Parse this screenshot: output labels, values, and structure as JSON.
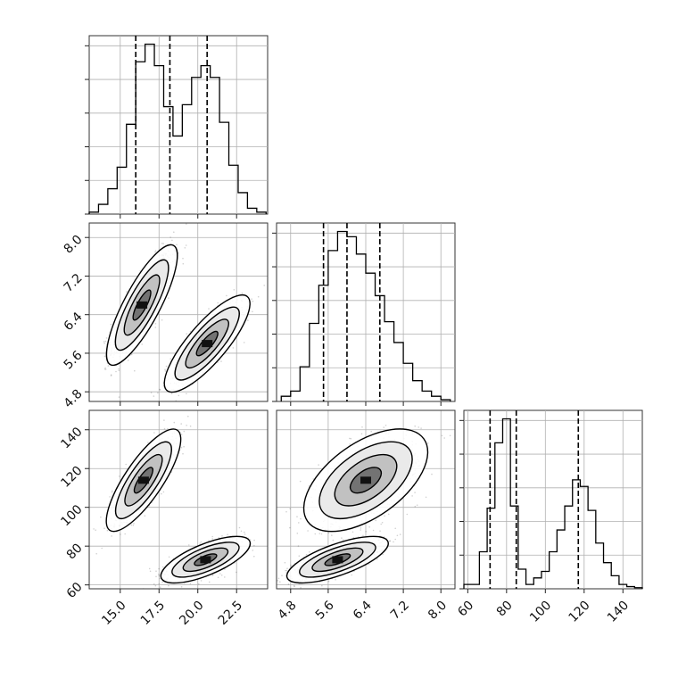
{
  "chart_data": {
    "type": "corner",
    "colors": {
      "hist": "#000000",
      "scatter": "#000000",
      "grid": "#b0b0b0"
    },
    "panels": [
      {
        "id": "hist-p1",
        "type": "histogram",
        "row": 0,
        "col": 0,
        "xlim": [
          13.0,
          24.5
        ],
        "xticks": [
          15.0,
          17.5,
          20.0,
          22.5
        ],
        "bin_edges": [
          13.0,
          13.6,
          14.2,
          14.8,
          15.4,
          16.0,
          16.6,
          17.2,
          17.8,
          18.4,
          19.0,
          19.6,
          20.2,
          20.8,
          21.4,
          22.0,
          22.6,
          23.2,
          23.8,
          24.4
        ],
        "counts": [
          0.01,
          0.05,
          0.13,
          0.24,
          0.46,
          0.78,
          0.87,
          0.76,
          0.55,
          0.4,
          0.56,
          0.7,
          0.76,
          0.7,
          0.47,
          0.25,
          0.11,
          0.03,
          0.01
        ],
        "quantiles": [
          16.0,
          18.2,
          20.6
        ]
      },
      {
        "id": "hist-p2",
        "type": "histogram",
        "row": 1,
        "col": 1,
        "xlim": [
          4.5,
          8.3
        ],
        "xticks": [
          4.8,
          5.6,
          6.4,
          7.2,
          8.0
        ],
        "bin_edges": [
          4.6,
          4.8,
          5.0,
          5.2,
          5.4,
          5.6,
          5.8,
          6.0,
          6.2,
          6.4,
          6.6,
          6.8,
          7.0,
          7.2,
          7.4,
          7.6,
          7.8,
          8.0,
          8.2
        ],
        "counts": [
          0.03,
          0.06,
          0.2,
          0.45,
          0.67,
          0.87,
          0.98,
          0.95,
          0.85,
          0.74,
          0.61,
          0.46,
          0.34,
          0.22,
          0.12,
          0.06,
          0.03,
          0.01
        ],
        "quantiles": [
          5.5,
          6.0,
          6.7
        ]
      },
      {
        "id": "hist-p3",
        "type": "histogram",
        "row": 2,
        "col": 2,
        "xlim": [
          58,
          150
        ],
        "xticks": [
          60,
          80,
          100,
          120,
          140
        ],
        "bin_edges": [
          58,
          62,
          66,
          70,
          74,
          78,
          82,
          86,
          90,
          94,
          98,
          102,
          106,
          110,
          114,
          118,
          122,
          126,
          130,
          134,
          138,
          142,
          146,
          150
        ],
        "counts": [
          0.02,
          0.02,
          0.17,
          0.37,
          0.67,
          0.78,
          0.38,
          0.09,
          0.02,
          0.05,
          0.08,
          0.17,
          0.27,
          0.38,
          0.5,
          0.47,
          0.36,
          0.21,
          0.12,
          0.06,
          0.02,
          0.01,
          0.005
        ],
        "quantiles": [
          71.5,
          85,
          117
        ]
      },
      {
        "id": "scatter-p2-p1",
        "type": "density",
        "row": 1,
        "col": 0,
        "xlim": [
          13.0,
          24.5
        ],
        "ylim": [
          4.6,
          8.3
        ],
        "xticks": [
          15.0,
          17.5,
          20.0,
          22.5
        ],
        "yticks": [
          4.8,
          5.6,
          6.4,
          7.2,
          8.0
        ],
        "clusters": [
          {
            "cx": 16.4,
            "cy": 6.6,
            "sx": 0.95,
            "sy": 0.52,
            "rho": 0.82
          },
          {
            "cx": 20.6,
            "cy": 5.8,
            "sx": 1.15,
            "sy": 0.42,
            "rho": 0.82
          }
        ]
      },
      {
        "id": "scatter-p3-p1",
        "type": "density",
        "row": 2,
        "col": 0,
        "xlim": [
          13.0,
          24.5
        ],
        "ylim": [
          58,
          150
        ],
        "xticks": [
          15.0,
          17.5,
          20.0,
          22.5
        ],
        "yticks": [
          60,
          80,
          100,
          120,
          140
        ],
        "clusters": [
          {
            "cx": 16.5,
            "cy": 114,
            "sx": 1.0,
            "sy": 11,
            "rho": 0.8
          },
          {
            "cx": 20.5,
            "cy": 73,
            "sx": 1.2,
            "sy": 5,
            "rho": 0.7
          }
        ]
      },
      {
        "id": "scatter-p3-p2",
        "type": "density",
        "row": 2,
        "col": 1,
        "xlim": [
          4.5,
          8.3
        ],
        "ylim": [
          58,
          150
        ],
        "xticks": [
          4.8,
          5.6,
          6.4,
          7.2,
          8.0
        ],
        "yticks": [
          60,
          80,
          100,
          120,
          140
        ],
        "clusters": [
          {
            "cx": 6.4,
            "cy": 114,
            "sx": 0.55,
            "sy": 11,
            "rho": 0.55
          },
          {
            "cx": 5.8,
            "cy": 73,
            "sx": 0.45,
            "sy": 5,
            "rho": 0.7
          }
        ]
      }
    ]
  }
}
